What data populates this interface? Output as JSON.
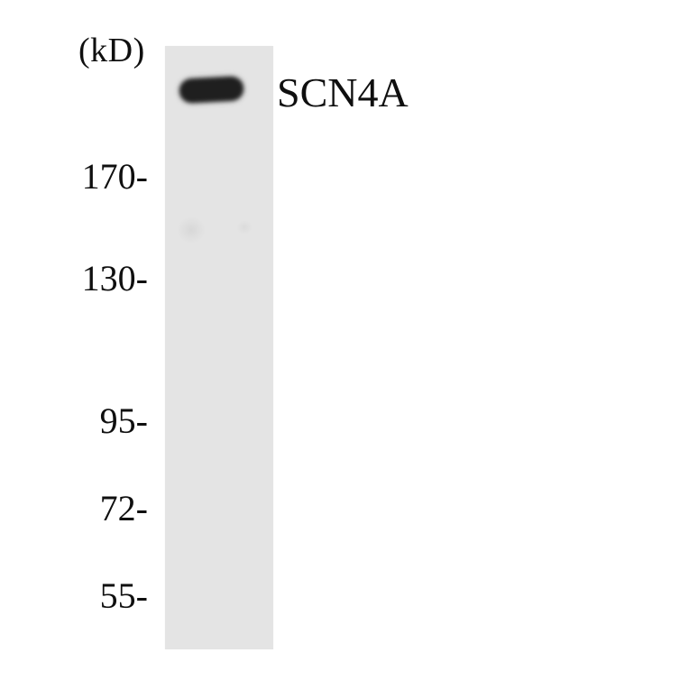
{
  "figure": {
    "type": "western-blot",
    "unit_label": "(kD)",
    "target_label": "SCN4A",
    "ladder": [
      {
        "label": "170-"
      },
      {
        "label": "130-"
      },
      {
        "label": "95-"
      },
      {
        "label": "72-"
      },
      {
        "label": "55-"
      }
    ],
    "lanes": [
      {
        "bands": [
          {
            "label": "SCN4A"
          }
        ]
      }
    ]
  },
  "colors": {
    "background": "#ffffff",
    "lane": "#e4e4e4",
    "band": "#1f1f1f",
    "text": "#0f0f0f"
  }
}
